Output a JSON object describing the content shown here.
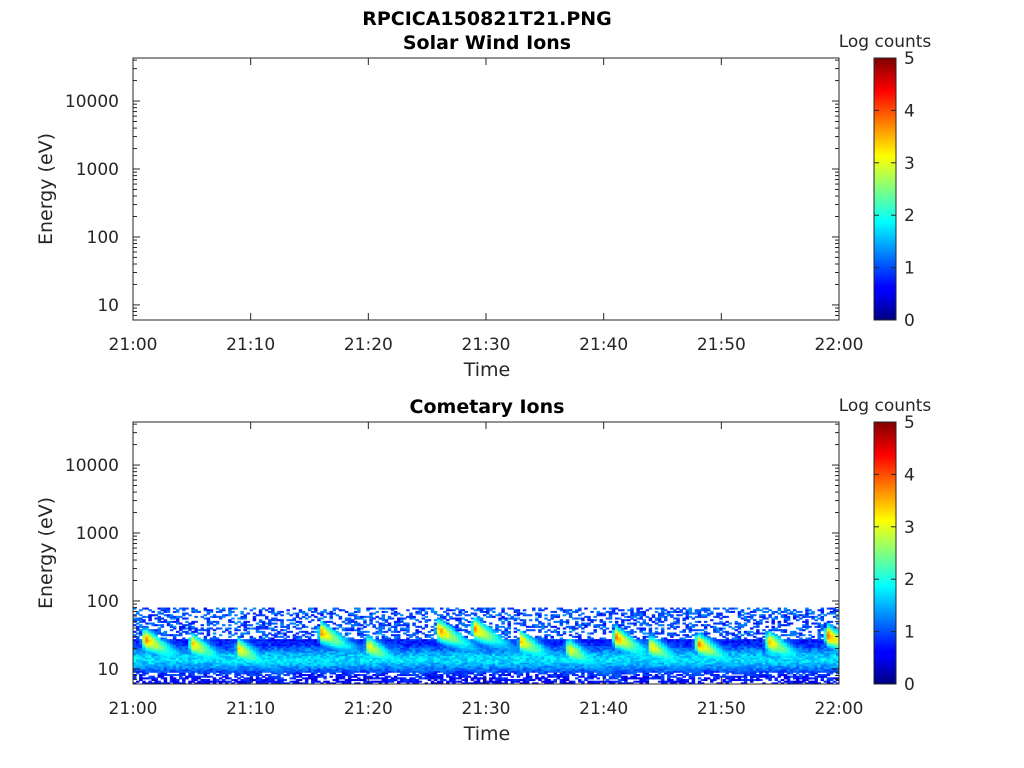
{
  "figure_title": "RPCICA150821T21.PNG",
  "chart_data": [
    {
      "type": "heatmap",
      "title": "Solar Wind Ions",
      "xlabel": "Time",
      "ylabel": "Energy (eV)",
      "x_ticks": [
        "21:00",
        "21:10",
        "21:20",
        "21:30",
        "21:40",
        "21:50",
        "22:00"
      ],
      "xlim": [
        "21:00",
        "22:00"
      ],
      "y_scale": "log",
      "y_ticks": [
        10,
        100,
        1000,
        10000
      ],
      "y_tick_labels": [
        "10",
        "100",
        "1000",
        "10000"
      ],
      "ylim": [
        6,
        43000
      ],
      "colorbar": {
        "label": "Log counts",
        "range": [
          0,
          5
        ],
        "ticks": [
          0,
          1,
          2,
          3,
          4,
          5
        ],
        "tick_labels": [
          "0",
          "1",
          "2",
          "3",
          "4",
          "5"
        ],
        "colormap": "jet"
      },
      "grid": false,
      "has_data": false
    },
    {
      "type": "heatmap",
      "title": "Cometary Ions",
      "xlabel": "Time",
      "ylabel": "Energy (eV)",
      "x_ticks": [
        "21:00",
        "21:10",
        "21:20",
        "21:30",
        "21:40",
        "21:50",
        "22:00"
      ],
      "xlim": [
        "21:00",
        "22:00"
      ],
      "y_scale": "log",
      "y_ticks": [
        10,
        100,
        1000,
        10000
      ],
      "y_tick_labels": [
        "10",
        "100",
        "1000",
        "10000"
      ],
      "ylim": [
        6,
        43000
      ],
      "colorbar": {
        "label": "Log counts",
        "range": [
          0,
          5
        ],
        "ticks": [
          0,
          1,
          2,
          3,
          4,
          5
        ],
        "tick_labels": [
          "0",
          "1",
          "2",
          "3",
          "4",
          "5"
        ],
        "colormap": "jet"
      },
      "grid": false,
      "has_data": true,
      "energy_max": 80,
      "noise_band_energy": [
        30,
        80
      ],
      "noise_level": 0.8,
      "core_band_energy_range": [
        6,
        80
      ],
      "peak_log_counts": 3.8,
      "bursts": [
        {
          "time": "21:01",
          "peak_energy": 28,
          "peak_log_counts": 3.6
        },
        {
          "time": "21:05",
          "peak_energy": 24,
          "peak_log_counts": 3.2
        },
        {
          "time": "21:09",
          "peak_energy": 20,
          "peak_log_counts": 3.0
        },
        {
          "time": "21:16",
          "peak_energy": 35,
          "peak_log_counts": 3.4
        },
        {
          "time": "21:20",
          "peak_energy": 22,
          "peak_log_counts": 3.0
        },
        {
          "time": "21:26",
          "peak_energy": 38,
          "peak_log_counts": 3.6
        },
        {
          "time": "21:29",
          "peak_energy": 40,
          "peak_log_counts": 3.5
        },
        {
          "time": "21:33",
          "peak_energy": 26,
          "peak_log_counts": 3.1
        },
        {
          "time": "21:37",
          "peak_energy": 20,
          "peak_log_counts": 3.0
        },
        {
          "time": "21:41",
          "peak_energy": 30,
          "peak_log_counts": 3.6
        },
        {
          "time": "21:44",
          "peak_energy": 22,
          "peak_log_counts": 3.1
        },
        {
          "time": "21:48",
          "peak_energy": 24,
          "peak_log_counts": 3.6
        },
        {
          "time": "21:54",
          "peak_energy": 26,
          "peak_log_counts": 3.3
        },
        {
          "time": "21:59",
          "peak_energy": 32,
          "peak_log_counts": 3.7
        }
      ]
    }
  ]
}
